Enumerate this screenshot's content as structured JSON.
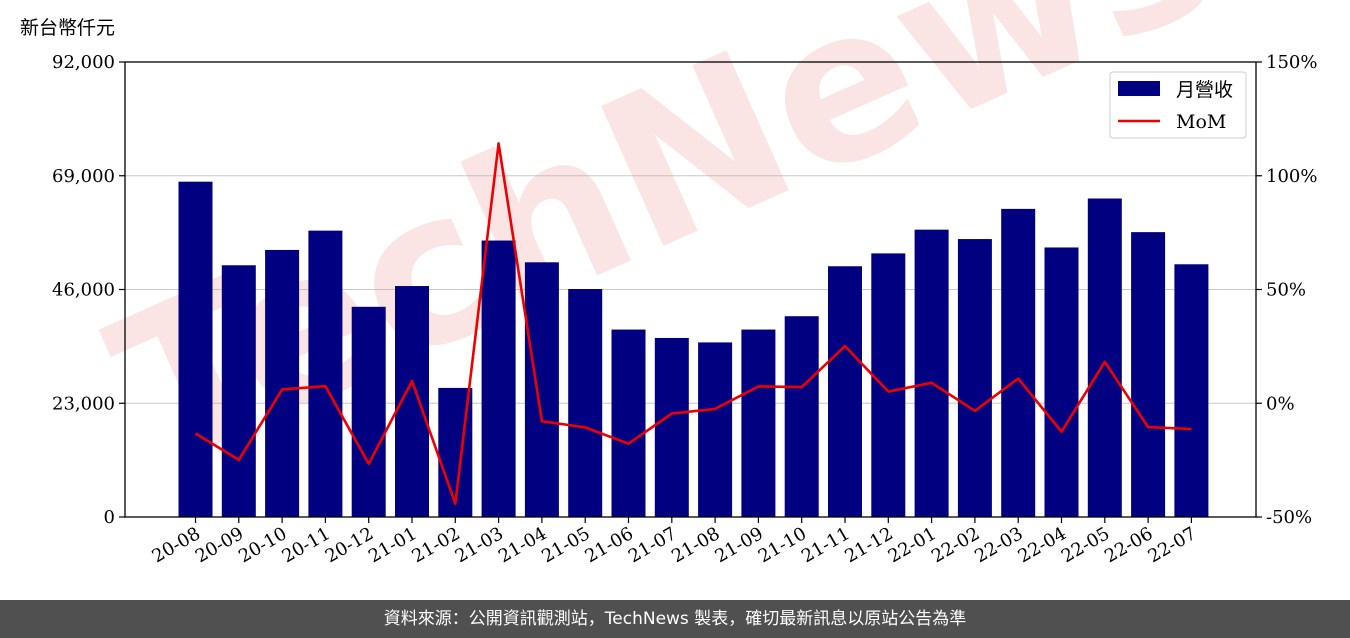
{
  "chart_data": {
    "type": "bar+line",
    "unit_label": "新台幣仟元",
    "categories": [
      "20-08",
      "20-09",
      "20-10",
      "20-11",
      "20-12",
      "21-01",
      "21-02",
      "21-03",
      "21-04",
      "21-05",
      "21-06",
      "21-07",
      "21-08",
      "21-09",
      "21-10",
      "21-11",
      "21-12",
      "22-01",
      "22-02",
      "22-03",
      "22-04",
      "22-05",
      "22-06",
      "22-07"
    ],
    "series": [
      {
        "name": "月營收",
        "axis": "left",
        "kind": "bar",
        "color": "#000080",
        "values": [
          67800,
          50900,
          54000,
          57900,
          42500,
          46700,
          26100,
          55900,
          51500,
          46100,
          37900,
          36200,
          35300,
          37900,
          40600,
          50700,
          53300,
          58100,
          56200,
          62300,
          54500,
          64400,
          57600,
          51100
        ]
      },
      {
        "name": "MoM",
        "axis": "right",
        "kind": "line",
        "color": "#ee0000",
        "values": [
          -13.3,
          -24.9,
          6.1,
          7.5,
          -26.6,
          9.8,
          -44.1,
          114.2,
          -7.9,
          -10.6,
          -17.8,
          -4.5,
          -2.5,
          7.4,
          7.1,
          25.1,
          5.1,
          9.0,
          -3.3,
          10.9,
          -12.5,
          18.2,
          -10.5,
          -11.3
        ]
      }
    ],
    "y_left": {
      "min": 0,
      "max": 92000,
      "ticks": [
        0,
        23000,
        46000,
        69000,
        92000
      ],
      "tick_labels": [
        "0",
        "23,000",
        "46,000",
        "69,000",
        "92,000"
      ]
    },
    "y_right": {
      "min": -50,
      "max": 150,
      "ticks": [
        -50,
        0,
        50,
        100,
        150
      ],
      "tick_labels": [
        "-50%",
        "0%",
        "50%",
        "100%",
        "150%"
      ]
    },
    "grid": "horizontal",
    "legend_position": "top-right",
    "watermark": "TechNews"
  },
  "footer": {
    "text": "資料來源：公開資訊觀測站，TechNews 製表，確切最新訊息以原站公告為準"
  }
}
